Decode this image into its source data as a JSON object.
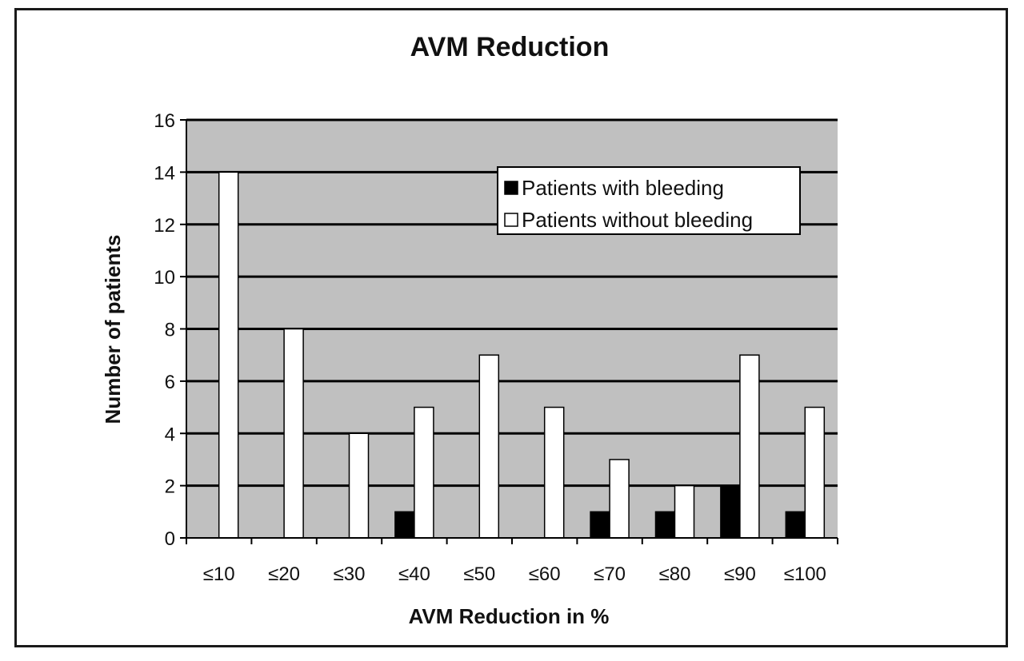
{
  "chart_data": {
    "type": "bar",
    "title": "AVM Reduction",
    "xlabel": "AVM Reduction in %",
    "ylabel": "Number of patients",
    "categories": [
      "≤10",
      "≤20",
      "≤30",
      "≤40",
      "≤50",
      "≤60",
      "≤70",
      "≤80",
      "≤90",
      "≤100"
    ],
    "series": [
      {
        "name": "Patients with bleeding",
        "values": [
          0,
          0,
          0,
          1,
          0,
          0,
          1,
          1,
          2,
          1
        ],
        "color": "#000000"
      },
      {
        "name": "Patients without bleeding",
        "values": [
          14,
          8,
          4,
          5,
          7,
          5,
          3,
          2,
          7,
          5
        ],
        "color": "#ffffff"
      }
    ],
    "ylim": [
      0,
      16
    ],
    "yticks": [
      0,
      2,
      4,
      6,
      8,
      10,
      12,
      14,
      16
    ],
    "grid": true,
    "plot_background": "#c0c0c0",
    "legend_position": "top-right"
  }
}
